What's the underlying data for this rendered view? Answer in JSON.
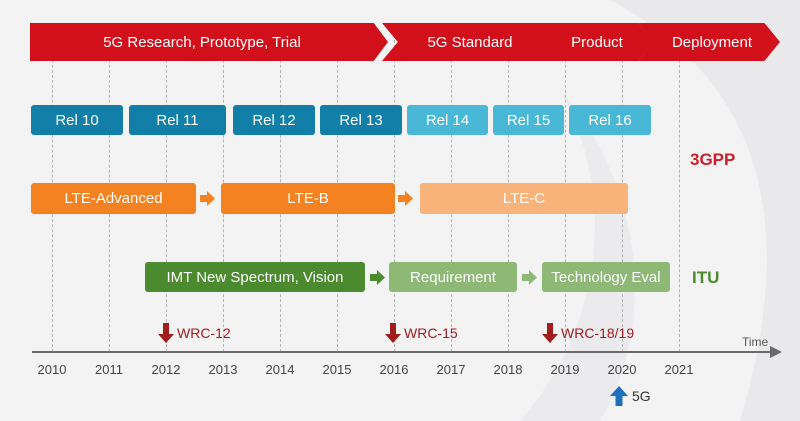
{
  "phases": [
    "5G Research, Prototype, Trial",
    "5G Standard",
    "Product",
    "Deployment"
  ],
  "releases": [
    "Rel 10",
    "Rel 11",
    "Rel 12",
    "Rel 13",
    "Rel 14",
    "Rel 15",
    "Rel 16"
  ],
  "lte": [
    "LTE-Advanced",
    "LTE-B",
    "LTE-C"
  ],
  "itu_items": [
    "IMT New Spectrum, Vision",
    "Requirement",
    "Technology Eval"
  ],
  "orgs": {
    "gpp": "3GPP",
    "itu": "ITU"
  },
  "wrc": [
    "WRC-12",
    "WRC-15",
    "WRC-18/19"
  ],
  "years": [
    "2010",
    "2011",
    "2012",
    "2013",
    "2014",
    "2015",
    "2016",
    "2017",
    "2018",
    "2019",
    "2020",
    "2021"
  ],
  "axis_label": "Time",
  "fiveg_marker": "5G",
  "colors": {
    "phase_red": "#d2101b",
    "rel_dark": "#127fa8",
    "rel_light": "#48b8d6",
    "lte_orange": "#f58220",
    "lte_light": "#f8b37a",
    "itu_green": "#4b8a2e",
    "itu_light": "#8eb876",
    "wrc_red": "#a11c1c",
    "marker_blue": "#1f6fc1",
    "gpp_label": "#c8202c",
    "itu_label": "#4b8a2e"
  }
}
